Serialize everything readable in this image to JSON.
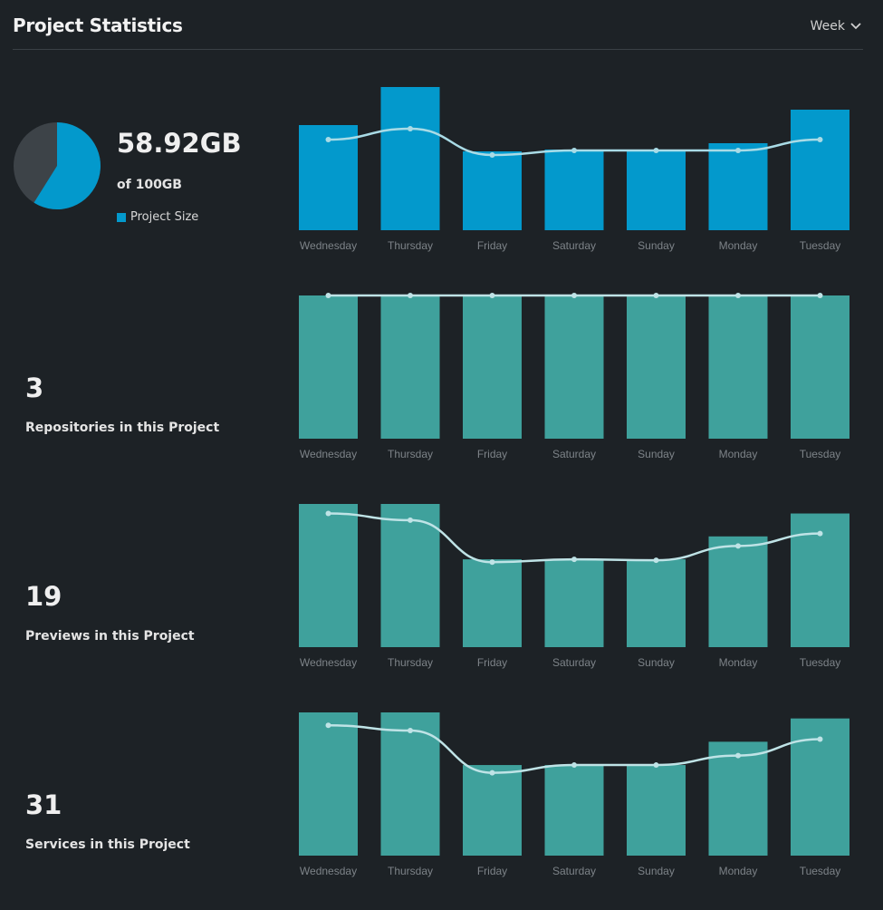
{
  "header": {
    "title": "Project Statistics",
    "period": "Week",
    "period_icon": "chevron-down-icon"
  },
  "storage": {
    "value": "58.92GB",
    "of": "of 100GB",
    "legend": "Project Size",
    "used": 58.92,
    "total": 100,
    "colors": {
      "used": "#0399cc",
      "free": "#3d4348"
    }
  },
  "stats": [
    {
      "value": "3",
      "label": "Repositories in this Project"
    },
    {
      "value": "19",
      "label": "Previews in this Project"
    },
    {
      "value": "31",
      "label": "Services in this Project"
    }
  ],
  "chart_data": [
    {
      "type": "bar",
      "categories": [
        "Wednesday",
        "Thursday",
        "Friday",
        "Saturday",
        "Sunday",
        "Monday",
        "Tuesday"
      ],
      "series": [
        {
          "type": "bar",
          "values": [
            116,
            158,
            87,
            89,
            89,
            96,
            133
          ]
        },
        {
          "type": "line",
          "values": [
            100,
            112,
            83,
            88,
            88,
            88,
            100
          ]
        }
      ],
      "ylim": [
        0,
        158
      ],
      "bar_color": "#0399cc",
      "line_color": "#a9dbe6",
      "grid": false
    },
    {
      "type": "bar",
      "categories": [
        "Wednesday",
        "Thursday",
        "Friday",
        "Saturday",
        "Sunday",
        "Monday",
        "Tuesday"
      ],
      "series": [
        {
          "type": "bar",
          "values": [
            3,
            3,
            3,
            3,
            3,
            3,
            3
          ]
        },
        {
          "type": "line",
          "values": [
            3,
            3,
            3,
            3,
            3,
            3,
            3
          ]
        }
      ],
      "ylim": [
        0,
        3
      ],
      "bar_color": "#3fa19c",
      "line_color": "#bfe3e6",
      "grid": false
    },
    {
      "type": "bar",
      "categories": [
        "Wednesday",
        "Thursday",
        "Friday",
        "Saturday",
        "Sunday",
        "Monday",
        "Tuesday"
      ],
      "series": [
        {
          "type": "bar",
          "values": [
            150,
            150,
            92,
            92,
            92,
            116,
            140
          ]
        },
        {
          "type": "line",
          "values": [
            140,
            133,
            89,
            92,
            91,
            106,
            119
          ]
        }
      ],
      "ylim": [
        0,
        150
      ],
      "bar_color": "#3fa19c",
      "line_color": "#bfe3e6",
      "grid": false
    },
    {
      "type": "bar",
      "categories": [
        "Wednesday",
        "Thursday",
        "Friday",
        "Saturday",
        "Sunday",
        "Monday",
        "Tuesday"
      ],
      "series": [
        {
          "type": "bar",
          "values": [
            166,
            166,
            105,
            105,
            105,
            132,
            159
          ]
        },
        {
          "type": "line",
          "values": [
            151,
            145,
            96,
            105,
            105,
            116,
            135
          ]
        }
      ],
      "ylim": [
        0,
        166
      ],
      "bar_color": "#3fa19c",
      "line_color": "#bfe3e6",
      "grid": false
    }
  ]
}
